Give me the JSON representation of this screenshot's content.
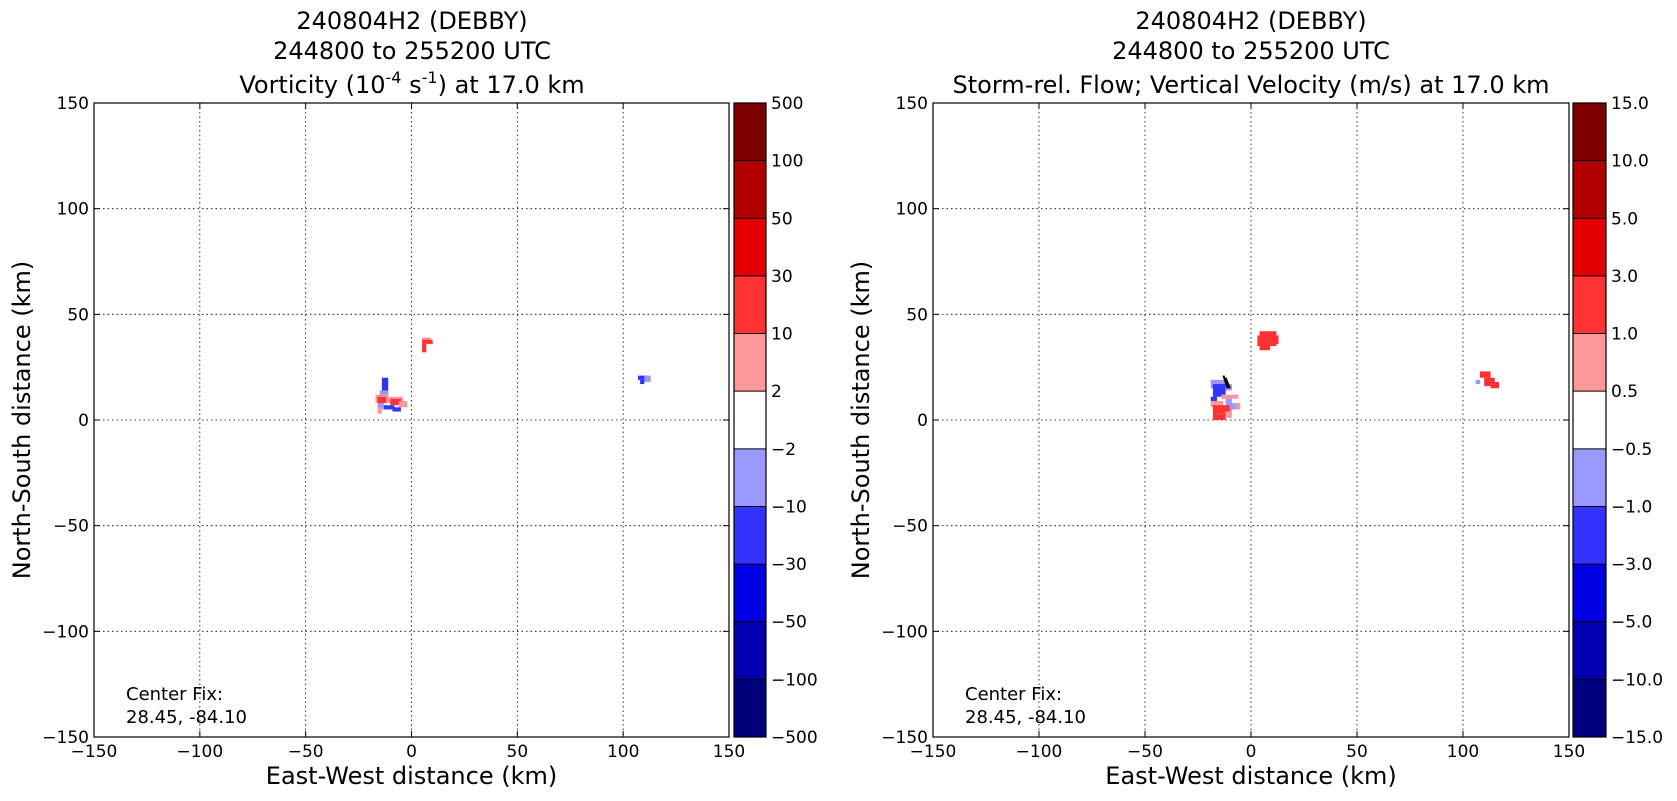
{
  "figure_bg": "#ffffff",
  "chart_data": [
    {
      "type": "heatmap",
      "title_lines": [
        "240804H2 (DEBBY)",
        "244800 to 255200 UTC"
      ],
      "title_line3": {
        "prefix": "Vorticity (10",
        "sup1": "-4",
        "mid": " s",
        "sup2": "-1",
        "suffix": ") at 17.0 km"
      },
      "xlabel": "East-West distance (km)",
      "ylabel": "North-South distance (km)",
      "xlim": [
        -150,
        150
      ],
      "ylim": [
        -150,
        150
      ],
      "xticks": [
        -150,
        -100,
        -50,
        0,
        50,
        100,
        150
      ],
      "yticks": [
        -150,
        -100,
        -50,
        0,
        50,
        100,
        150
      ],
      "xtick_labels": [
        "−150",
        "−100",
        "−50",
        "0",
        "50",
        "100",
        "150"
      ],
      "ytick_labels": [
        "−150",
        "−100",
        "−50",
        "0",
        "50",
        "100",
        "150"
      ],
      "grid": true,
      "annotation_lines": [
        "Center Fix:",
        "28.45, -84.10"
      ],
      "colorbar": {
        "colors": [
          "#00007f",
          "#0000b2",
          "#0000e5",
          "#3333ff",
          "#9999ff",
          "#ffffff",
          "#ff9999",
          "#ff3333",
          "#e50000",
          "#b20000",
          "#7f0000"
        ],
        "tick_labels": [
          "−500",
          "−100",
          "−50",
          "−30",
          "−10",
          "−2",
          "2",
          "10",
          "30",
          "50",
          "100",
          "500"
        ]
      },
      "patches": [
        {
          "x": -14,
          "y": 20,
          "w": 3,
          "h": 8,
          "color": "#3333ff"
        },
        {
          "x": -15,
          "y": 14,
          "w": 4,
          "h": 4,
          "color": "#9999ff"
        },
        {
          "x": -17,
          "y": 12,
          "w": 6,
          "h": 4,
          "color": "#ff9999"
        },
        {
          "x": -16,
          "y": 11,
          "w": 5,
          "h": 3,
          "color": "#ff3333"
        },
        {
          "x": -12,
          "y": 11,
          "w": 8,
          "h": 3,
          "color": "#ff9999"
        },
        {
          "x": -10,
          "y": 10,
          "w": 5,
          "h": 3,
          "color": "#ff3333"
        },
        {
          "x": -6,
          "y": 9,
          "w": 4,
          "h": 3,
          "color": "#ff9999"
        },
        {
          "x": -16,
          "y": 8,
          "w": 3,
          "h": 3,
          "color": "#9999ff"
        },
        {
          "x": -13,
          "y": 7,
          "w": 5,
          "h": 2,
          "color": "#3333ff"
        },
        {
          "x": -9,
          "y": 6,
          "w": 4,
          "h": 2,
          "color": "#3333ff"
        },
        {
          "x": -16,
          "y": 6,
          "w": 2,
          "h": 3,
          "color": "#ff9999"
        },
        {
          "x": 5,
          "y": 39,
          "w": 4,
          "h": 2,
          "color": "#ff9999"
        },
        {
          "x": 5,
          "y": 38,
          "w": 5,
          "h": 2,
          "color": "#ff3333"
        },
        {
          "x": 5,
          "y": 36,
          "w": 2,
          "h": 4,
          "color": "#ff3333"
        },
        {
          "x": 107,
          "y": 21,
          "w": 5,
          "h": 2,
          "color": "#3333ff"
        },
        {
          "x": 110,
          "y": 21,
          "w": 3,
          "h": 3,
          "color": "#9999ff"
        },
        {
          "x": 108,
          "y": 19,
          "w": 2,
          "h": 2,
          "color": "#3333ff"
        }
      ],
      "arrows": []
    },
    {
      "type": "heatmap",
      "title_lines": [
        "240804H2 (DEBBY)",
        "244800 to 255200 UTC"
      ],
      "title_line3": {
        "prefix": "Storm-rel. Flow; Vertical Velocity (m/s) at 17.0 km",
        "sup1": "",
        "mid": "",
        "sup2": "",
        "suffix": ""
      },
      "xlabel": "East-West distance (km)",
      "ylabel": "North-South distance (km)",
      "xlim": [
        -150,
        150
      ],
      "ylim": [
        -150,
        150
      ],
      "xticks": [
        -150,
        -100,
        -50,
        0,
        50,
        100,
        150
      ],
      "yticks": [
        -150,
        -100,
        -50,
        0,
        50,
        100,
        150
      ],
      "xtick_labels": [
        "−150",
        "−100",
        "−50",
        "0",
        "50",
        "100",
        "150"
      ],
      "ytick_labels": [
        "−150",
        "−100",
        "−50",
        "0",
        "50",
        "100",
        "150"
      ],
      "grid": true,
      "annotation_lines": [
        "Center Fix:",
        "28.45, -84.10"
      ],
      "colorbar": {
        "colors": [
          "#00007f",
          "#0000b2",
          "#0000e5",
          "#3333ff",
          "#9999ff",
          "#ffffff",
          "#ff9999",
          "#ff3333",
          "#e50000",
          "#b20000",
          "#7f0000"
        ],
        "tick_labels": [
          "−15.0",
          "−10.0",
          "−5.0",
          "−3.0",
          "−1.0",
          "−0.5",
          "0.5",
          "1.0",
          "3.0",
          "5.0",
          "10.0",
          "15.0"
        ]
      },
      "patches": [
        {
          "x": -19,
          "y": 19,
          "w": 8,
          "h": 4,
          "color": "#9999ff"
        },
        {
          "x": -18,
          "y": 17,
          "w": 6,
          "h": 6,
          "color": "#3333ff"
        },
        {
          "x": -12,
          "y": 17,
          "w": 3,
          "h": 3,
          "color": "#9999ff"
        },
        {
          "x": -19,
          "y": 11,
          "w": 3,
          "h": 2,
          "color": "#3333ff"
        },
        {
          "x": -14,
          "y": 12,
          "w": 8,
          "h": 2,
          "color": "#ff9999"
        },
        {
          "x": -12,
          "y": 10,
          "w": 3,
          "h": 6,
          "color": "#9999ff"
        },
        {
          "x": -19,
          "y": 9,
          "w": 6,
          "h": 3,
          "color": "#ff9999"
        },
        {
          "x": -18,
          "y": 7,
          "w": 8,
          "h": 4,
          "color": "#ff3333"
        },
        {
          "x": -10,
          "y": 8,
          "w": 4,
          "h": 3,
          "color": "#9999ff"
        },
        {
          "x": -7,
          "y": 8,
          "w": 2,
          "h": 3,
          "color": "#ff9999"
        },
        {
          "x": -18,
          "y": 3,
          "w": 6,
          "h": 3,
          "color": "#ff3333"
        },
        {
          "x": -12,
          "y": 4,
          "w": 3,
          "h": 3,
          "color": "#ff9999"
        },
        {
          "x": 4,
          "y": 42,
          "w": 8,
          "h": 3,
          "color": "#ff3333"
        },
        {
          "x": 3,
          "y": 40,
          "w": 9,
          "h": 5,
          "color": "#ff3333"
        },
        {
          "x": 4,
          "y": 36,
          "w": 5,
          "h": 3,
          "color": "#ff3333"
        },
        {
          "x": 11,
          "y": 40,
          "w": 2,
          "h": 4,
          "color": "#ff3333"
        },
        {
          "x": 108,
          "y": 23,
          "w": 5,
          "h": 3,
          "color": "#ff3333"
        },
        {
          "x": 110,
          "y": 20,
          "w": 5,
          "h": 4,
          "color": "#ff3333"
        },
        {
          "x": 113,
          "y": 18,
          "w": 4,
          "h": 3,
          "color": "#ff3333"
        },
        {
          "x": 106,
          "y": 19,
          "w": 2,
          "h": 2,
          "color": "#9999ff"
        }
      ],
      "arrows": [
        {
          "x0": -13,
          "y0": 21,
          "x1": -11,
          "y1": 15
        },
        {
          "x0": -12,
          "y0": 20,
          "x1": -10,
          "y1": 15
        }
      ]
    }
  ]
}
